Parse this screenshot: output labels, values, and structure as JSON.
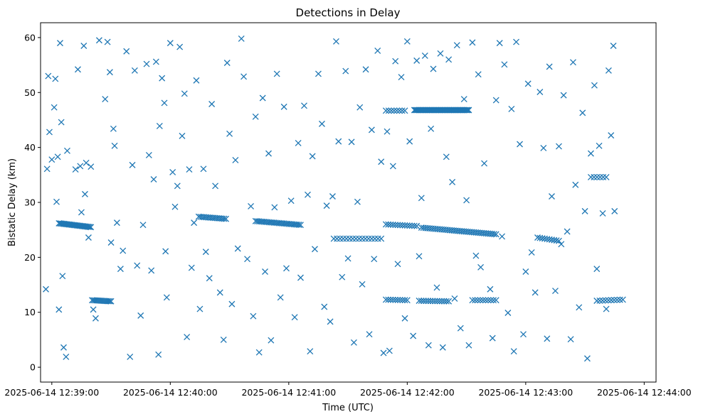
{
  "chart_data": {
    "type": "scatter",
    "title": "Detections in Delay",
    "xlabel": "Time (UTC)",
    "ylabel": "Bistatic Delay (km)",
    "marker": "x",
    "color": "#1f77b4",
    "x_unit": "minutes since 2025-06-14 12:39:00 UTC",
    "xlim": [
      -0.095,
      5.1
    ],
    "ylim": [
      -2.7,
      62.7
    ],
    "x_ticks": [
      {
        "value": 0,
        "label": "2025-06-14 12:39:00"
      },
      {
        "value": 1,
        "label": "2025-06-14 12:40:00"
      },
      {
        "value": 2,
        "label": "2025-06-14 12:41:00"
      },
      {
        "value": 3,
        "label": "2025-06-14 12:42:00"
      },
      {
        "value": 4,
        "label": "2025-06-14 12:43:00"
      },
      {
        "value": 5,
        "label": "2025-06-14 12:44:00"
      }
    ],
    "y_ticks": [
      {
        "value": 0,
        "label": "0"
      },
      {
        "value": 10,
        "label": "10"
      },
      {
        "value": 20,
        "label": "20"
      },
      {
        "value": 30,
        "label": "30"
      },
      {
        "value": 40,
        "label": "40"
      },
      {
        "value": 50,
        "label": "50"
      },
      {
        "value": 60,
        "label": "60"
      }
    ],
    "tracks": [
      {
        "name": "track-1",
        "x_start": 0.06,
        "x_end": 0.33,
        "y_start": 26.2,
        "y_end": 25.5,
        "count": 26
      },
      {
        "name": "track-2",
        "x_start": 0.34,
        "x_end": 0.5,
        "y_start": 12.2,
        "y_end": 12.0,
        "count": 14
      },
      {
        "name": "track-3",
        "x_start": 1.24,
        "x_end": 1.47,
        "y_start": 27.4,
        "y_end": 27.0,
        "count": 16
      },
      {
        "name": "track-4",
        "x_start": 1.72,
        "x_end": 2.1,
        "y_start": 26.6,
        "y_end": 25.9,
        "count": 28
      },
      {
        "name": "track-5",
        "x_start": 2.38,
        "x_end": 2.78,
        "y_start": 23.4,
        "y_end": 23.4,
        "count": 16
      },
      {
        "name": "track-6",
        "x_start": 2.82,
        "x_end": 2.98,
        "y_start": 46.7,
        "y_end": 46.7,
        "count": 8
      },
      {
        "name": "track-7",
        "x_start": 2.82,
        "x_end": 3.08,
        "y_start": 26.0,
        "y_end": 25.7,
        "count": 14
      },
      {
        "name": "track-8",
        "x_start": 3.06,
        "x_end": 3.52,
        "y_start": 46.8,
        "y_end": 46.8,
        "count": 48
      },
      {
        "name": "track-9",
        "x_start": 3.12,
        "x_end": 3.75,
        "y_start": 25.4,
        "y_end": 24.2,
        "count": 38
      },
      {
        "name": "track-10",
        "x_start": 2.82,
        "x_end": 3.0,
        "y_start": 12.3,
        "y_end": 12.2,
        "count": 10
      },
      {
        "name": "track-11",
        "x_start": 3.1,
        "x_end": 3.35,
        "y_start": 12.1,
        "y_end": 12.0,
        "count": 14
      },
      {
        "name": "track-12",
        "x_start": 3.55,
        "x_end": 3.75,
        "y_start": 12.2,
        "y_end": 12.2,
        "count": 10
      },
      {
        "name": "track-13",
        "x_start": 4.1,
        "x_end": 4.28,
        "y_start": 23.6,
        "y_end": 23.0,
        "count": 10
      },
      {
        "name": "track-14",
        "x_start": 4.55,
        "x_end": 4.68,
        "y_start": 34.6,
        "y_end": 34.6,
        "count": 6
      },
      {
        "name": "track-15",
        "x_start": 4.6,
        "x_end": 4.82,
        "y_start": 12.1,
        "y_end": 12.3,
        "count": 10
      }
    ],
    "scatter_points": [
      [
        -0.05,
        14.2
      ],
      [
        -0.04,
        36.1
      ],
      [
        -0.03,
        53.0
      ],
      [
        -0.02,
        42.8
      ],
      [
        0.0,
        37.8
      ],
      [
        0.02,
        47.3
      ],
      [
        0.03,
        52.5
      ],
      [
        0.04,
        30.1
      ],
      [
        0.05,
        38.3
      ],
      [
        0.06,
        10.5
      ],
      [
        0.07,
        59.0
      ],
      [
        0.08,
        44.6
      ],
      [
        0.09,
        16.6
      ],
      [
        0.1,
        3.6
      ],
      [
        0.12,
        1.9
      ],
      [
        0.13,
        39.4
      ],
      [
        0.2,
        36.0
      ],
      [
        0.22,
        54.2
      ],
      [
        0.24,
        36.6
      ],
      [
        0.25,
        28.2
      ],
      [
        0.27,
        58.5
      ],
      [
        0.28,
        31.5
      ],
      [
        0.29,
        37.2
      ],
      [
        0.31,
        23.6
      ],
      [
        0.33,
        36.5
      ],
      [
        0.35,
        10.5
      ],
      [
        0.37,
        8.9
      ],
      [
        0.4,
        59.5
      ],
      [
        0.45,
        48.8
      ],
      [
        0.47,
        59.2
      ],
      [
        0.49,
        53.7
      ],
      [
        0.5,
        22.7
      ],
      [
        0.52,
        43.4
      ],
      [
        0.53,
        40.3
      ],
      [
        0.55,
        26.3
      ],
      [
        0.58,
        17.9
      ],
      [
        0.6,
        21.2
      ],
      [
        0.63,
        57.5
      ],
      [
        0.66,
        1.9
      ],
      [
        0.68,
        36.8
      ],
      [
        0.7,
        54.0
      ],
      [
        0.72,
        18.5
      ],
      [
        0.75,
        9.4
      ],
      [
        0.77,
        25.9
      ],
      [
        0.8,
        55.2
      ],
      [
        0.82,
        38.6
      ],
      [
        0.84,
        17.6
      ],
      [
        0.86,
        34.2
      ],
      [
        0.88,
        55.6
      ],
      [
        0.9,
        2.3
      ],
      [
        0.91,
        43.9
      ],
      [
        0.93,
        52.6
      ],
      [
        0.95,
        48.1
      ],
      [
        0.96,
        21.1
      ],
      [
        0.97,
        12.7
      ],
      [
        1.0,
        59.0
      ],
      [
        1.02,
        35.5
      ],
      [
        1.04,
        29.2
      ],
      [
        1.06,
        33.0
      ],
      [
        1.08,
        58.3
      ],
      [
        1.1,
        42.1
      ],
      [
        1.12,
        49.8
      ],
      [
        1.14,
        5.5
      ],
      [
        1.16,
        36.0
      ],
      [
        1.18,
        18.1
      ],
      [
        1.2,
        26.3
      ],
      [
        1.22,
        52.2
      ],
      [
        1.25,
        10.6
      ],
      [
        1.28,
        36.1
      ],
      [
        1.3,
        21.0
      ],
      [
        1.33,
        16.2
      ],
      [
        1.35,
        47.9
      ],
      [
        1.38,
        33.0
      ],
      [
        1.42,
        13.6
      ],
      [
        1.45,
        5.0
      ],
      [
        1.48,
        55.4
      ],
      [
        1.5,
        42.5
      ],
      [
        1.52,
        11.5
      ],
      [
        1.55,
        37.7
      ],
      [
        1.57,
        21.6
      ],
      [
        1.6,
        59.8
      ],
      [
        1.62,
        52.9
      ],
      [
        1.65,
        19.7
      ],
      [
        1.68,
        29.3
      ],
      [
        1.7,
        9.3
      ],
      [
        1.72,
        45.6
      ],
      [
        1.75,
        2.7
      ],
      [
        1.78,
        49.0
      ],
      [
        1.8,
        17.4
      ],
      [
        1.83,
        38.9
      ],
      [
        1.85,
        4.9
      ],
      [
        1.88,
        29.1
      ],
      [
        1.9,
        53.4
      ],
      [
        1.93,
        12.7
      ],
      [
        1.96,
        47.4
      ],
      [
        1.98,
        18.0
      ],
      [
        2.02,
        30.3
      ],
      [
        2.05,
        9.1
      ],
      [
        2.08,
        40.8
      ],
      [
        2.1,
        16.3
      ],
      [
        2.13,
        47.6
      ],
      [
        2.16,
        31.4
      ],
      [
        2.18,
        2.9
      ],
      [
        2.2,
        38.4
      ],
      [
        2.22,
        21.5
      ],
      [
        2.25,
        53.4
      ],
      [
        2.28,
        44.3
      ],
      [
        2.3,
        11.0
      ],
      [
        2.32,
        29.4
      ],
      [
        2.35,
        8.3
      ],
      [
        2.37,
        31.1
      ],
      [
        2.4,
        59.3
      ],
      [
        2.42,
        41.1
      ],
      [
        2.45,
        16.4
      ],
      [
        2.48,
        53.9
      ],
      [
        2.5,
        19.8
      ],
      [
        2.53,
        41.0
      ],
      [
        2.55,
        4.5
      ],
      [
        2.58,
        30.1
      ],
      [
        2.6,
        47.3
      ],
      [
        2.62,
        15.1
      ],
      [
        2.65,
        54.2
      ],
      [
        2.68,
        6.0
      ],
      [
        2.7,
        43.2
      ],
      [
        2.72,
        19.7
      ],
      [
        2.75,
        57.6
      ],
      [
        2.78,
        37.4
      ],
      [
        2.8,
        2.6
      ],
      [
        2.83,
        42.9
      ],
      [
        2.85,
        3.0
      ],
      [
        2.88,
        36.6
      ],
      [
        2.9,
        55.7
      ],
      [
        2.92,
        18.8
      ],
      [
        2.95,
        52.8
      ],
      [
        2.98,
        8.9
      ],
      [
        3.0,
        59.3
      ],
      [
        3.02,
        41.1
      ],
      [
        3.05,
        5.7
      ],
      [
        3.08,
        55.8
      ],
      [
        3.1,
        20.2
      ],
      [
        3.12,
        30.8
      ],
      [
        3.15,
        56.7
      ],
      [
        3.18,
        4.0
      ],
      [
        3.2,
        43.4
      ],
      [
        3.22,
        54.3
      ],
      [
        3.25,
        14.5
      ],
      [
        3.28,
        57.1
      ],
      [
        3.3,
        3.6
      ],
      [
        3.33,
        38.3
      ],
      [
        3.35,
        56.0
      ],
      [
        3.38,
        33.7
      ],
      [
        3.4,
        12.5
      ],
      [
        3.42,
        58.6
      ],
      [
        3.45,
        7.1
      ],
      [
        3.48,
        48.8
      ],
      [
        3.5,
        30.4
      ],
      [
        3.52,
        4.0
      ],
      [
        3.55,
        59.1
      ],
      [
        3.58,
        20.3
      ],
      [
        3.6,
        53.3
      ],
      [
        3.62,
        18.2
      ],
      [
        3.65,
        37.1
      ],
      [
        3.7,
        14.2
      ],
      [
        3.72,
        5.3
      ],
      [
        3.75,
        48.6
      ],
      [
        3.78,
        59.0
      ],
      [
        3.8,
        23.8
      ],
      [
        3.82,
        55.1
      ],
      [
        3.85,
        9.9
      ],
      [
        3.88,
        47.0
      ],
      [
        3.9,
        2.9
      ],
      [
        3.92,
        59.2
      ],
      [
        3.95,
        40.6
      ],
      [
        3.98,
        6.0
      ],
      [
        4.0,
        17.4
      ],
      [
        4.02,
        51.6
      ],
      [
        4.05,
        20.9
      ],
      [
        4.08,
        13.6
      ],
      [
        4.12,
        50.1
      ],
      [
        4.15,
        39.9
      ],
      [
        4.18,
        5.2
      ],
      [
        4.2,
        54.7
      ],
      [
        4.22,
        31.1
      ],
      [
        4.25,
        13.9
      ],
      [
        4.28,
        40.2
      ],
      [
        4.3,
        22.4
      ],
      [
        4.32,
        49.5
      ],
      [
        4.35,
        24.7
      ],
      [
        4.38,
        5.1
      ],
      [
        4.4,
        55.5
      ],
      [
        4.42,
        33.2
      ],
      [
        4.45,
        10.9
      ],
      [
        4.48,
        46.3
      ],
      [
        4.5,
        28.4
      ],
      [
        4.52,
        1.6
      ],
      [
        4.55,
        38.9
      ],
      [
        4.58,
        51.3
      ],
      [
        4.6,
        17.9
      ],
      [
        4.62,
        40.3
      ],
      [
        4.65,
        28.0
      ],
      [
        4.68,
        10.6
      ],
      [
        4.7,
        54.0
      ],
      [
        4.72,
        42.2
      ],
      [
        4.74,
        58.5
      ],
      [
        4.75,
        28.4
      ]
    ]
  }
}
